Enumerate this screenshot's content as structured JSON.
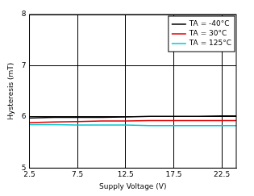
{
  "chart_data": {
    "type": "line",
    "x_label": "Supply Voltage (V)",
    "y_label": "Hysteresis (mT)",
    "x": [
      2.5,
      5,
      7.5,
      10,
      12.5,
      15,
      17.5,
      20,
      22.5,
      24
    ],
    "series": [
      {
        "name": "TA = -40°C",
        "color": "#000000",
        "values": [
          5.98,
          5.99,
          5.99,
          5.99,
          6.0,
          6.01,
          6.01,
          6.01,
          6.02,
          6.02
        ]
      },
      {
        "name": "TA = 30°C",
        "color": "#e00000",
        "values": [
          5.89,
          5.9,
          5.91,
          5.92,
          5.92,
          5.93,
          5.93,
          5.93,
          5.93,
          5.93
        ]
      },
      {
        "name": "TA = 125°C",
        "color": "#00c8d0",
        "values": [
          5.85,
          5.85,
          5.84,
          5.84,
          5.84,
          5.83,
          5.83,
          5.83,
          5.83,
          5.83
        ]
      }
    ],
    "xlim": [
      2.5,
      24
    ],
    "ylim": [
      5,
      8
    ],
    "xticks": [
      2.5,
      7.5,
      12.5,
      17.5,
      22.5
    ],
    "yticks": [
      5,
      6,
      7,
      8
    ],
    "grid": true,
    "legend": "upper right"
  }
}
